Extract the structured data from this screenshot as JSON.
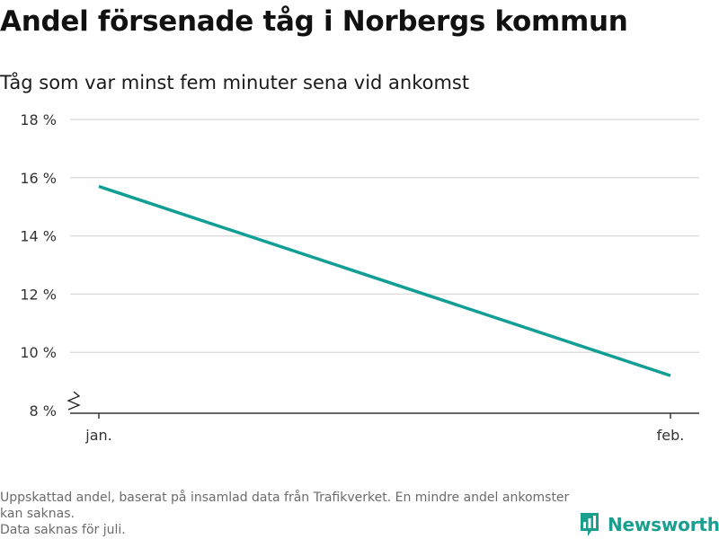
{
  "header": {
    "title": "Andel försenade tåg i Norbergs kommun",
    "subtitle": "Tåg som var minst fem minuter sena vid ankomst"
  },
  "chart_data": {
    "type": "line",
    "categories": [
      "jan.",
      "feb."
    ],
    "series": [
      {
        "values": [
          15.7,
          9.2
        ],
        "color": "#119e94"
      }
    ],
    "ylim": [
      8,
      18
    ],
    "y_ticks": [
      8,
      10,
      12,
      14,
      16,
      18
    ],
    "y_tick_labels": [
      "8 %",
      "10 %",
      "12 %",
      "14 %",
      "16 %",
      "18 %"
    ],
    "ylabel": "",
    "xlabel": "",
    "grid": true,
    "y_axis_break": true,
    "colors": {
      "grid": "#dddddd",
      "axis": "#333333",
      "tick_label": "#333333"
    }
  },
  "footer": {
    "note_line_1": "Uppskattad andel, baserat på insamlad data från Trafikverket. En mindre andel ankomster kan saknas.",
    "note_line_2": "Data saknas för juli.",
    "logo_text": "Newsworthy",
    "logo_icon": "newsworthy-chart-icon",
    "logo_color": "#1a9e8f"
  }
}
